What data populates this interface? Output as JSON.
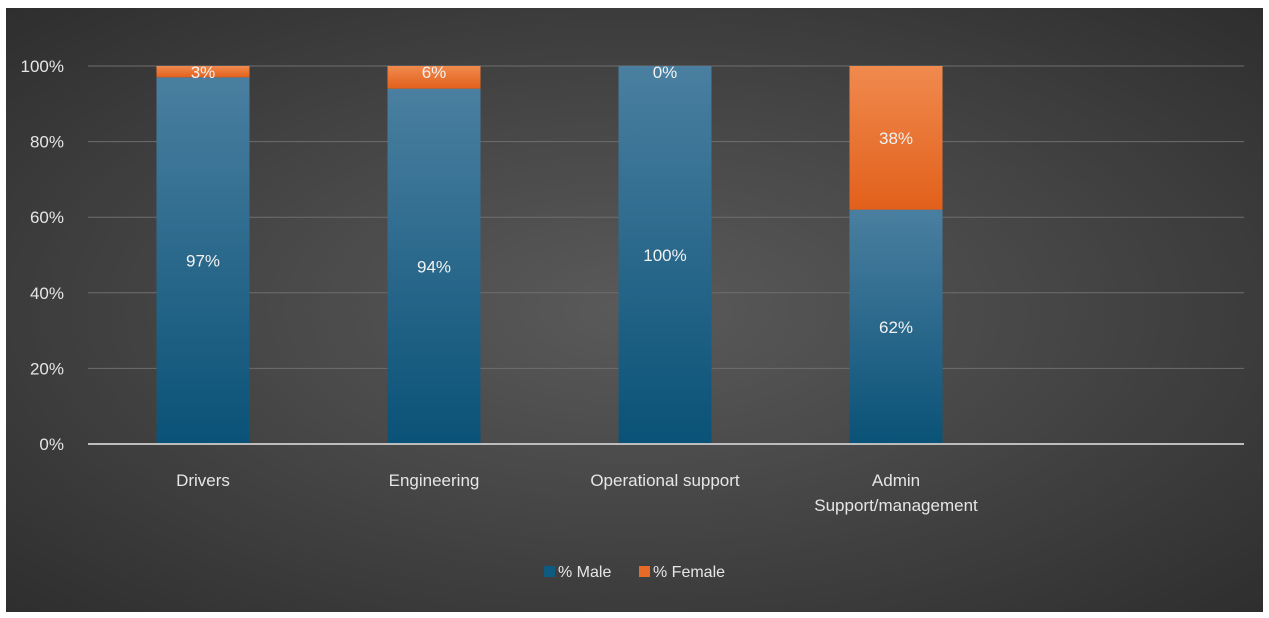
{
  "chart_data": {
    "type": "bar",
    "stacked": true,
    "percent_stacked": true,
    "categories": [
      [
        "Drivers"
      ],
      [
        "Engineering"
      ],
      [
        "Operational support"
      ],
      [
        "Admin",
        "Support/management"
      ]
    ],
    "series": [
      {
        "name": "% Male",
        "color": "#0f5a80",
        "values": [
          97,
          94,
          100,
          62
        ],
        "labels": [
          "97%",
          "94%",
          "100%",
          "62%"
        ]
      },
      {
        "name": "% Female",
        "color": "#e86b25",
        "values": [
          3,
          6,
          0,
          38
        ],
        "labels": [
          "3%",
          "6%",
          "0%",
          "38%"
        ]
      }
    ],
    "ylim": [
      0,
      100
    ],
    "yticks": [
      0,
      20,
      40,
      60,
      80,
      100
    ],
    "ytick_labels": [
      "0%",
      "20%",
      "40%",
      "60%",
      "80%",
      "100%"
    ],
    "grid": true,
    "legend_position": "bottom",
    "title": "",
    "xlabel": "",
    "ylabel": ""
  }
}
